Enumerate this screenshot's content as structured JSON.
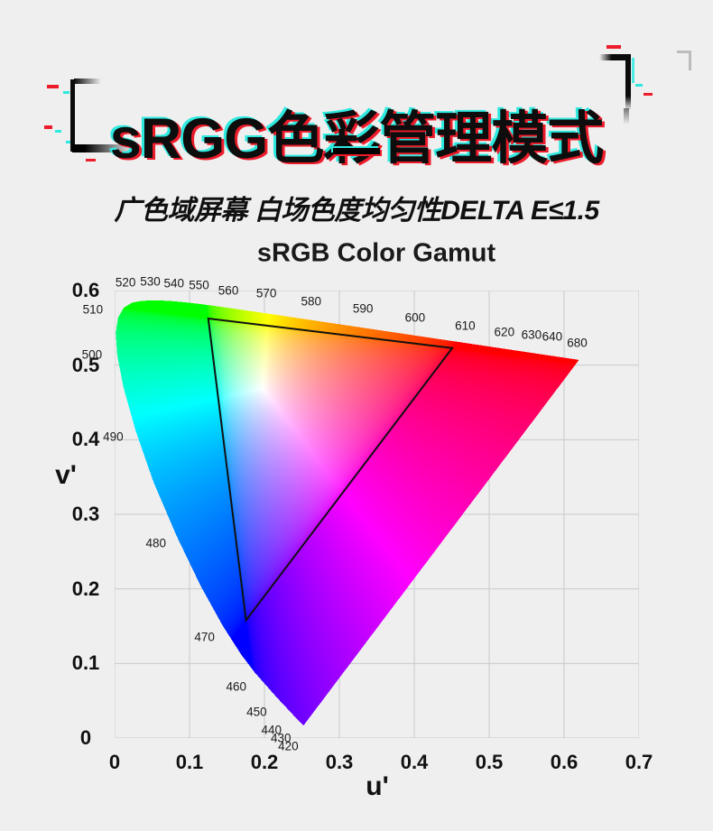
{
  "page": {
    "background": "#efefef"
  },
  "header": {
    "title": "sRGG色彩管理模式",
    "subtitle": "广色域屏幕 白场色度均匀性DELTA E≤1.5",
    "accent_red": "#ed1c2b",
    "accent_cyan": "#2fe9df"
  },
  "chart_data": {
    "type": "area",
    "subtype": "CIE 1976 u'v' chromaticity diagram with sRGB gamut triangle",
    "title": "sRGB Color Gamut",
    "xlabel": "u'",
    "ylabel": "v'",
    "xlim": [
      0,
      0.7
    ],
    "ylim": [
      0,
      0.6
    ],
    "x_ticks": [
      0,
      0.1,
      0.2,
      0.3,
      0.4,
      0.5,
      0.6,
      0.7
    ],
    "y_ticks": [
      0,
      0.1,
      0.2,
      0.3,
      0.4,
      0.5,
      0.6
    ],
    "grid": true,
    "grid_color": "#c7cacc",
    "triangle_color": "#111111",
    "label_color": "#1a1a1a",
    "srgb_primaries_xy": {
      "red": [
        0.64,
        0.33
      ],
      "green": [
        0.3,
        0.6
      ],
      "blue": [
        0.15,
        0.06
      ]
    },
    "spectral_locus_xy": [
      [
        420,
        0.1714,
        0.0051
      ],
      [
        430,
        0.1689,
        0.0069
      ],
      [
        440,
        0.1644,
        0.0109
      ],
      [
        450,
        0.1566,
        0.0177
      ],
      [
        460,
        0.144,
        0.0297
      ],
      [
        465,
        0.1355,
        0.0399
      ],
      [
        470,
        0.1241,
        0.0578
      ],
      [
        475,
        0.1096,
        0.0868
      ],
      [
        480,
        0.0913,
        0.1327
      ],
      [
        485,
        0.0687,
        0.2007
      ],
      [
        490,
        0.0454,
        0.295
      ],
      [
        495,
        0.0235,
        0.4127
      ],
      [
        500,
        0.0082,
        0.5384
      ],
      [
        505,
        0.0039,
        0.6548
      ],
      [
        510,
        0.0139,
        0.7502
      ],
      [
        515,
        0.0389,
        0.812
      ],
      [
        520,
        0.0743,
        0.8338
      ],
      [
        525,
        0.1142,
        0.8262
      ],
      [
        530,
        0.1547,
        0.8059
      ],
      [
        535,
        0.1929,
        0.7816
      ],
      [
        540,
        0.2296,
        0.7543
      ],
      [
        545,
        0.2658,
        0.7243
      ],
      [
        550,
        0.3016,
        0.6923
      ],
      [
        555,
        0.3373,
        0.6589
      ],
      [
        560,
        0.3731,
        0.6245
      ],
      [
        565,
        0.4087,
        0.5896
      ],
      [
        570,
        0.4441,
        0.5547
      ],
      [
        575,
        0.4788,
        0.5202
      ],
      [
        580,
        0.5125,
        0.4866
      ],
      [
        585,
        0.5448,
        0.4544
      ],
      [
        590,
        0.5752,
        0.4242
      ],
      [
        595,
        0.6029,
        0.3965
      ],
      [
        600,
        0.627,
        0.3725
      ],
      [
        605,
        0.6482,
        0.3514
      ],
      [
        610,
        0.6658,
        0.334
      ],
      [
        615,
        0.6801,
        0.3197
      ],
      [
        620,
        0.6915,
        0.3083
      ],
      [
        625,
        0.7006,
        0.2993
      ],
      [
        630,
        0.7079,
        0.292
      ],
      [
        635,
        0.714,
        0.2859
      ],
      [
        640,
        0.719,
        0.2809
      ],
      [
        650,
        0.726,
        0.274
      ],
      [
        660,
        0.73,
        0.27
      ],
      [
        670,
        0.732,
        0.268
      ],
      [
        680,
        0.7334,
        0.2666
      ]
    ],
    "wavelength_labels": [
      [
        520,
        -7,
        -23
      ],
      [
        530,
        -2,
        -21
      ],
      [
        540,
        0,
        -20
      ],
      [
        550,
        0,
        -21
      ],
      [
        560,
        -1,
        -19
      ],
      [
        570,
        0,
        -22
      ],
      [
        580,
        0,
        -21
      ],
      [
        590,
        0,
        -21
      ],
      [
        600,
        -2,
        -20
      ],
      [
        610,
        -1,
        -19
      ],
      [
        620,
        0,
        -19
      ],
      [
        630,
        0,
        -20
      ],
      [
        640,
        1,
        -21
      ],
      [
        680,
        -2,
        -19
      ],
      [
        510,
        -28,
        -9
      ],
      [
        500,
        -28,
        -1
      ],
      [
        490,
        -25,
        6
      ],
      [
        480,
        -23,
        8
      ],
      [
        470,
        -20,
        13
      ],
      [
        460,
        -21,
        15
      ],
      [
        450,
        -22,
        16
      ],
      [
        440,
        -21,
        20
      ],
      [
        430,
        -20,
        19
      ],
      [
        420,
        -17,
        23
      ]
    ]
  }
}
